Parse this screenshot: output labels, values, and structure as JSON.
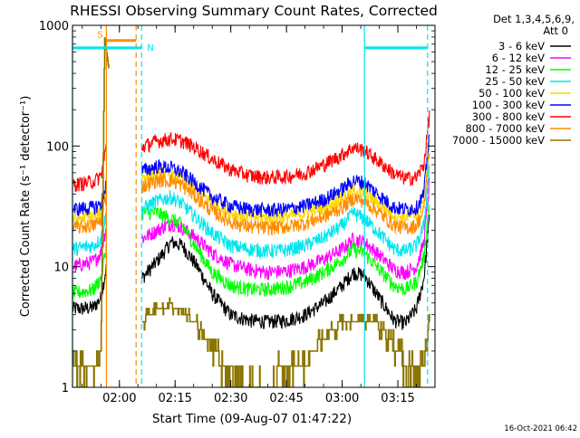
{
  "chart_data": {
    "type": "line",
    "title": "RHESSI Observing Summary Count Rates, Corrected",
    "xlabel": "Start Time (09-Aug-07 01:47:22)",
    "ylabel": "Corrected Count Rate (s⁻¹ detector⁻¹)",
    "yscale": "log",
    "ylim": [
      1,
      1000
    ],
    "xlim": [
      "01:47:22",
      "03:25:00"
    ],
    "x_ticks": [
      "02:00",
      "02:15",
      "02:30",
      "02:45",
      "03:00",
      "03:15"
    ],
    "y_ticks": [
      "1",
      "10",
      "100",
      "1000"
    ],
    "grid": false,
    "legend_title": [
      "Det 1,3,4,5,6,9,",
      "Att 0"
    ],
    "legend_position": "right",
    "footer_date": "16-Oct-2021 06:42",
    "gap_markers": [
      {
        "label": "S",
        "from": "01:56:30",
        "to": "02:04:30",
        "level": 750,
        "color": "#ff8c00"
      },
      {
        "label": "N",
        "from": "01:47:22",
        "to": "02:06:00",
        "level": 650,
        "color": "#00e5ee"
      },
      {
        "label": "",
        "from": "03:06:00",
        "to": "03:23:00",
        "level": 650,
        "color": "#00e5ee"
      }
    ],
    "vertical_lines": [
      {
        "time": "01:47:22",
        "color": "#00e5ee",
        "style": "solid"
      },
      {
        "time": "01:56:30",
        "color": "#ff8c00",
        "style": "solid"
      },
      {
        "time": "02:04:30",
        "color": "#ff8c00",
        "style": "dashed"
      },
      {
        "time": "02:06:00",
        "color": "#00e5ee",
        "style": "dashed"
      },
      {
        "time": "03:06:00",
        "color": "#00e5ee",
        "style": "solid"
      },
      {
        "time": "03:23:00",
        "color": "#00e5ee",
        "style": "dashed"
      }
    ],
    "series": [
      {
        "name": "3 - 6 keV",
        "color": "#000000",
        "x": [
          "01:47:22",
          "01:50:00",
          "01:53:00",
          "01:55:00",
          "01:56:30",
          "02:06:00",
          "02:10:00",
          "02:14:00",
          "02:17:00",
          "02:21:00",
          "02:25:00",
          "02:30:00",
          "02:35:00",
          "02:40:00",
          "02:45:00",
          "02:50:00",
          "02:55:00",
          "03:00:00",
          "03:03:00",
          "03:06:00",
          "03:10:00",
          "03:14:00",
          "03:17:00",
          "03:20:00",
          "03:22:00",
          "03:23:30"
        ],
        "values": [
          4.5,
          4.5,
          4.6,
          5.5,
          10,
          8,
          11,
          16,
          15,
          10,
          6,
          4,
          3.6,
          3.5,
          3.6,
          4,
          5,
          7,
          9,
          8.5,
          5.5,
          3.6,
          3.4,
          4.5,
          8,
          25
        ]
      },
      {
        "name": "6 - 12 keV",
        "color": "#ff00ff",
        "x": [
          "01:47:22",
          "01:50:00",
          "01:53:00",
          "01:55:00",
          "01:56:30",
          "02:06:00",
          "02:10:00",
          "02:14:00",
          "02:17:00",
          "02:21:00",
          "02:25:00",
          "02:30:00",
          "02:35:00",
          "02:40:00",
          "02:45:00",
          "02:50:00",
          "02:55:00",
          "03:00:00",
          "03:03:00",
          "03:06:00",
          "03:10:00",
          "03:14:00",
          "03:17:00",
          "03:20:00",
          "03:22:00",
          "03:23:30"
        ],
        "values": [
          10,
          10.5,
          11,
          13,
          22,
          17,
          20,
          23,
          21,
          17,
          13,
          10.5,
          9.5,
          9,
          9.2,
          10,
          11.5,
          14,
          17,
          16,
          12.5,
          9.5,
          9,
          10,
          16,
          50
        ]
      },
      {
        "name": "12 - 25 keV",
        "color": "#00ff00",
        "x": [
          "01:47:22",
          "01:50:00",
          "01:53:00",
          "01:55:00",
          "01:56:30",
          "02:06:00",
          "02:10:00",
          "02:14:00",
          "02:17:00",
          "02:21:00",
          "02:25:00",
          "02:30:00",
          "02:35:00",
          "02:40:00",
          "02:45:00",
          "02:50:00",
          "02:55:00",
          "03:00:00",
          "03:03:00",
          "03:06:00",
          "03:10:00",
          "03:14:00",
          "03:17:00",
          "03:20:00",
          "03:22:00",
          "03:23:30"
        ],
        "values": [
          6,
          6.2,
          6.5,
          8,
          15,
          28,
          28,
          25,
          22,
          14,
          9,
          7,
          6.5,
          6.5,
          6.8,
          7.5,
          9,
          11.5,
          14,
          13,
          9.5,
          7,
          6.5,
          7.5,
          12,
          35
        ]
      },
      {
        "name": "25 - 50 keV",
        "color": "#00e5ee",
        "x": [
          "01:47:22",
          "01:50:00",
          "01:53:00",
          "01:55:00",
          "01:56:30",
          "02:06:00",
          "02:10:00",
          "02:14:00",
          "02:17:00",
          "02:21:00",
          "02:25:00",
          "02:30:00",
          "02:35:00",
          "02:40:00",
          "02:45:00",
          "02:50:00",
          "02:55:00",
          "03:00:00",
          "03:03:00",
          "03:06:00",
          "03:10:00",
          "03:14:00",
          "03:17:00",
          "03:20:00",
          "03:22:00",
          "03:23:30"
        ],
        "values": [
          14,
          14.5,
          15,
          17,
          28,
          30,
          35,
          38,
          33,
          25,
          19,
          15,
          14,
          13.5,
          13.8,
          15,
          17.5,
          22,
          28,
          25,
          19,
          14,
          13.5,
          15,
          22,
          70
        ]
      },
      {
        "name": "50 - 100 keV",
        "color": "#ffd700",
        "x": [
          "01:47:22",
          "01:50:00",
          "01:53:00",
          "01:55:00",
          "01:56:30",
          "02:06:00",
          "02:10:00",
          "02:14:00",
          "02:17:00",
          "02:21:00",
          "02:25:00",
          "02:30:00",
          "02:35:00",
          "02:40:00",
          "02:45:00",
          "02:50:00",
          "02:55:00",
          "03:00:00",
          "03:03:00",
          "03:06:00",
          "03:10:00",
          "03:14:00",
          "03:17:00",
          "03:20:00",
          "03:22:00",
          "03:23:30"
        ],
        "values": [
          25,
          25.5,
          26,
          28,
          45,
          55,
          60,
          58,
          52,
          42,
          34,
          28,
          26,
          25.5,
          26,
          28,
          31,
          37,
          43,
          41,
          33,
          27,
          26,
          27,
          35,
          110
        ]
      },
      {
        "name": "100 - 300 keV",
        "color": "#0000ff",
        "x": [
          "01:47:22",
          "01:50:00",
          "01:53:00",
          "01:55:00",
          "01:56:30",
          "02:06:00",
          "02:10:00",
          "02:14:00",
          "02:17:00",
          "02:21:00",
          "02:25:00",
          "02:30:00",
          "02:35:00",
          "02:40:00",
          "02:45:00",
          "02:50:00",
          "02:55:00",
          "03:00:00",
          "03:03:00",
          "03:06:00",
          "03:10:00",
          "03:14:00",
          "03:17:00",
          "03:20:00",
          "03:22:00",
          "03:23:30"
        ],
        "values": [
          30,
          30.5,
          31,
          33,
          50,
          62,
          68,
          66,
          60,
          48,
          38,
          32,
          30,
          29.5,
          30,
          32,
          36,
          44,
          52,
          50,
          39,
          31,
          30,
          31,
          40,
          130
        ]
      },
      {
        "name": "300 - 800 keV",
        "color": "#ff0000",
        "x": [
          "01:47:22",
          "01:50:00",
          "01:53:00",
          "01:55:00",
          "01:56:30",
          "02:06:00",
          "02:10:00",
          "02:14:00",
          "02:17:00",
          "02:21:00",
          "02:25:00",
          "02:30:00",
          "02:35:00",
          "02:40:00",
          "02:45:00",
          "02:50:00",
          "02:55:00",
          "03:00:00",
          "03:03:00",
          "03:06:00",
          "03:10:00",
          "03:14:00",
          "03:17:00",
          "03:20:00",
          "03:22:00",
          "03:23:30"
        ],
        "values": [
          48,
          49,
          51,
          56,
          100,
          98,
          110,
          115,
          110,
          95,
          78,
          64,
          57,
          55,
          56,
          60,
          70,
          85,
          98,
          92,
          74,
          59,
          54,
          55,
          70,
          180
        ]
      },
      {
        "name": "800 - 7000 keV",
        "color": "#ff8c00",
        "x": [
          "01:47:22",
          "01:50:00",
          "01:53:00",
          "01:55:00",
          "01:56:30",
          "02:06:00",
          "02:10:00",
          "02:14:00",
          "02:17:00",
          "02:21:00",
          "02:25:00",
          "02:30:00",
          "02:35:00",
          "02:40:00",
          "02:45:00",
          "02:50:00",
          "02:55:00",
          "03:00:00",
          "03:03:00",
          "03:06:00",
          "03:10:00",
          "03:14:00",
          "03:17:00",
          "03:20:00",
          "03:22:00",
          "03:23:30"
        ],
        "values": [
          21,
          21.5,
          22,
          24,
          40,
          46,
          52,
          52,
          47,
          37,
          29,
          23.5,
          21.5,
          21,
          21.5,
          23,
          26,
          31,
          37,
          35,
          28,
          22,
          21,
          22,
          29,
          95
        ]
      },
      {
        "name": "7000 - 15000 keV",
        "color": "#8b7500",
        "x": [
          "01:47:22",
          "01:50:00",
          "01:53:00",
          "01:55:00",
          "01:56:00",
          "02:06:00",
          "02:08:00",
          "02:10:00",
          "02:14:00",
          "02:17:00",
          "02:20:00",
          "02:23:00",
          "02:26:00",
          "02:28:00",
          "02:31:00",
          "02:35:00",
          "02:40:00",
          "02:45:00",
          "02:50:00",
          "02:53:00",
          "02:56:00",
          "02:59:00",
          "03:02:00",
          "03:05:00",
          "03:08:00",
          "03:11:00",
          "03:14:00",
          "03:17:00",
          "03:20:00",
          "03:22:30",
          "03:23:30"
        ],
        "values": [
          1.5,
          1.7,
          1.5,
          1.9,
          800,
          3.5,
          4,
          4.5,
          4.8,
          4.3,
          3.5,
          2.7,
          2,
          1.5,
          1.2,
          1.2,
          1.2,
          1.3,
          1.6,
          2.2,
          2.8,
          3.3,
          3.6,
          3.8,
          3.6,
          3,
          2.2,
          1.6,
          1.2,
          1.8,
          4
        ]
      }
    ]
  }
}
